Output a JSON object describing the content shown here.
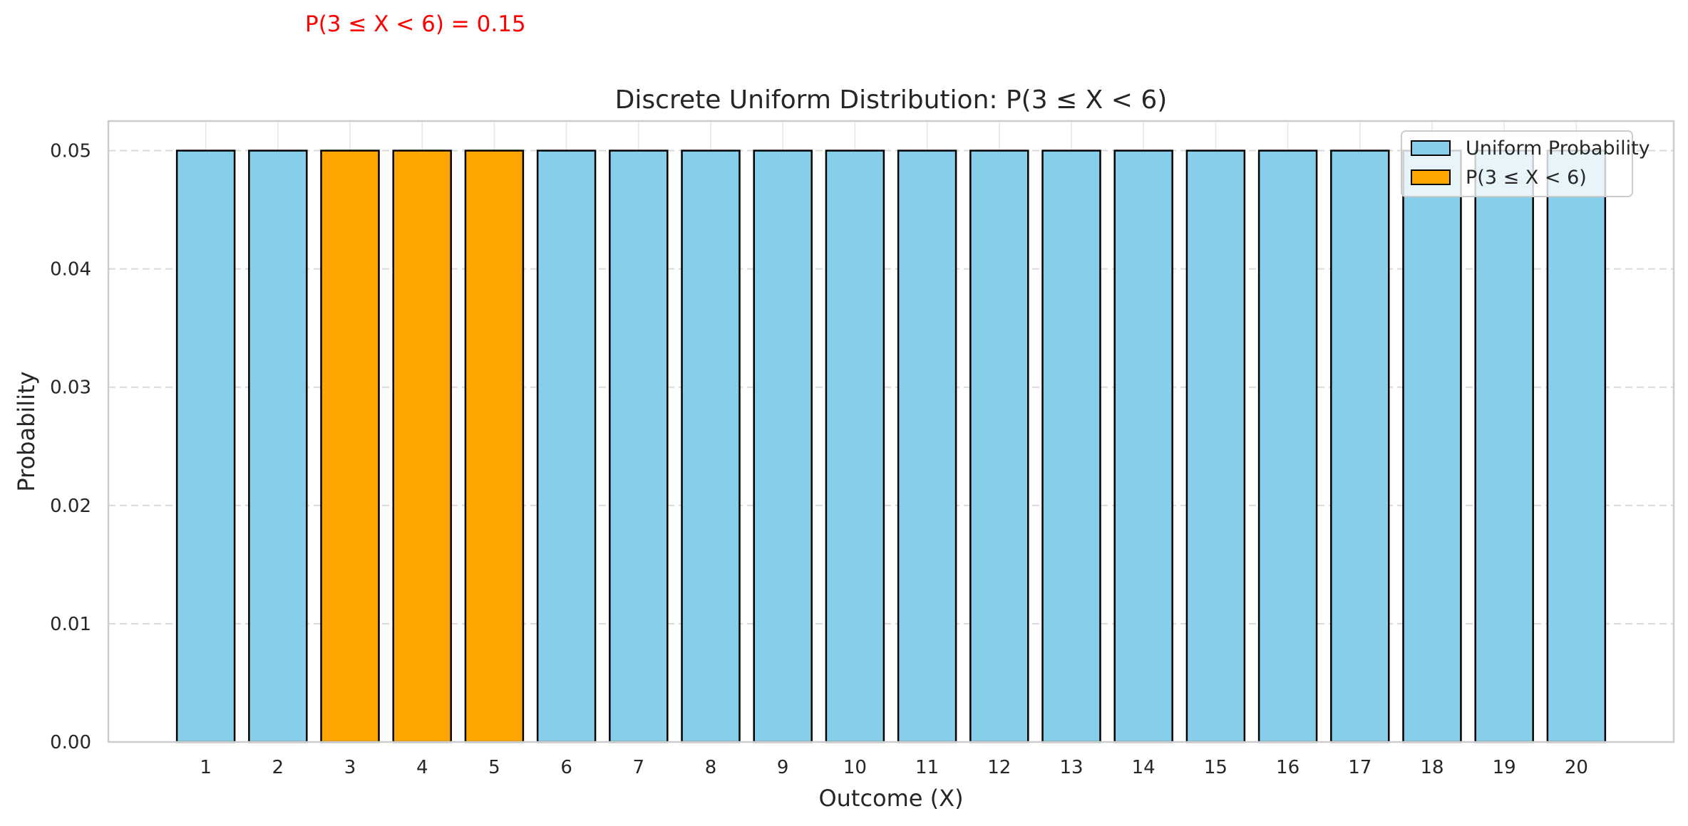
{
  "chart_data": {
    "type": "bar",
    "title": "Discrete Uniform Distribution: P(3 ≤ X < 6)",
    "xlabel": "Outcome (X)",
    "ylabel": "Probability",
    "categories": [
      "1",
      "2",
      "3",
      "4",
      "5",
      "6",
      "7",
      "8",
      "9",
      "10",
      "11",
      "12",
      "13",
      "14",
      "15",
      "16",
      "17",
      "18",
      "19",
      "20"
    ],
    "values": [
      0.05,
      0.05,
      0.05,
      0.05,
      0.05,
      0.05,
      0.05,
      0.05,
      0.05,
      0.05,
      0.05,
      0.05,
      0.05,
      0.05,
      0.05,
      0.05,
      0.05,
      0.05,
      0.05,
      0.05
    ],
    "highlighted": [
      false,
      false,
      true,
      true,
      true,
      false,
      false,
      false,
      false,
      false,
      false,
      false,
      false,
      false,
      false,
      false,
      false,
      false,
      false,
      false
    ],
    "ylim": [
      0,
      0.0525
    ],
    "yticks": [
      "0.00",
      "0.01",
      "0.02",
      "0.03",
      "0.04",
      "0.05"
    ],
    "ytick_values": [
      0,
      0.01,
      0.02,
      0.03,
      0.04,
      0.05
    ],
    "grid": "y-dashed",
    "legend": {
      "placement": "top-right",
      "entries": [
        {
          "label": "Uniform Probability",
          "color": "#87ceeb"
        },
        {
          "label": "P(3 ≤ X < 6)",
          "color": "#ffa500"
        }
      ]
    },
    "annotation": {
      "text": "P(3 ≤ X < 6) = 0.15",
      "color": "#ff0000"
    },
    "colors": {
      "base": "#87ceeb",
      "highlight": "#ffa500",
      "edge": "#000000"
    }
  }
}
